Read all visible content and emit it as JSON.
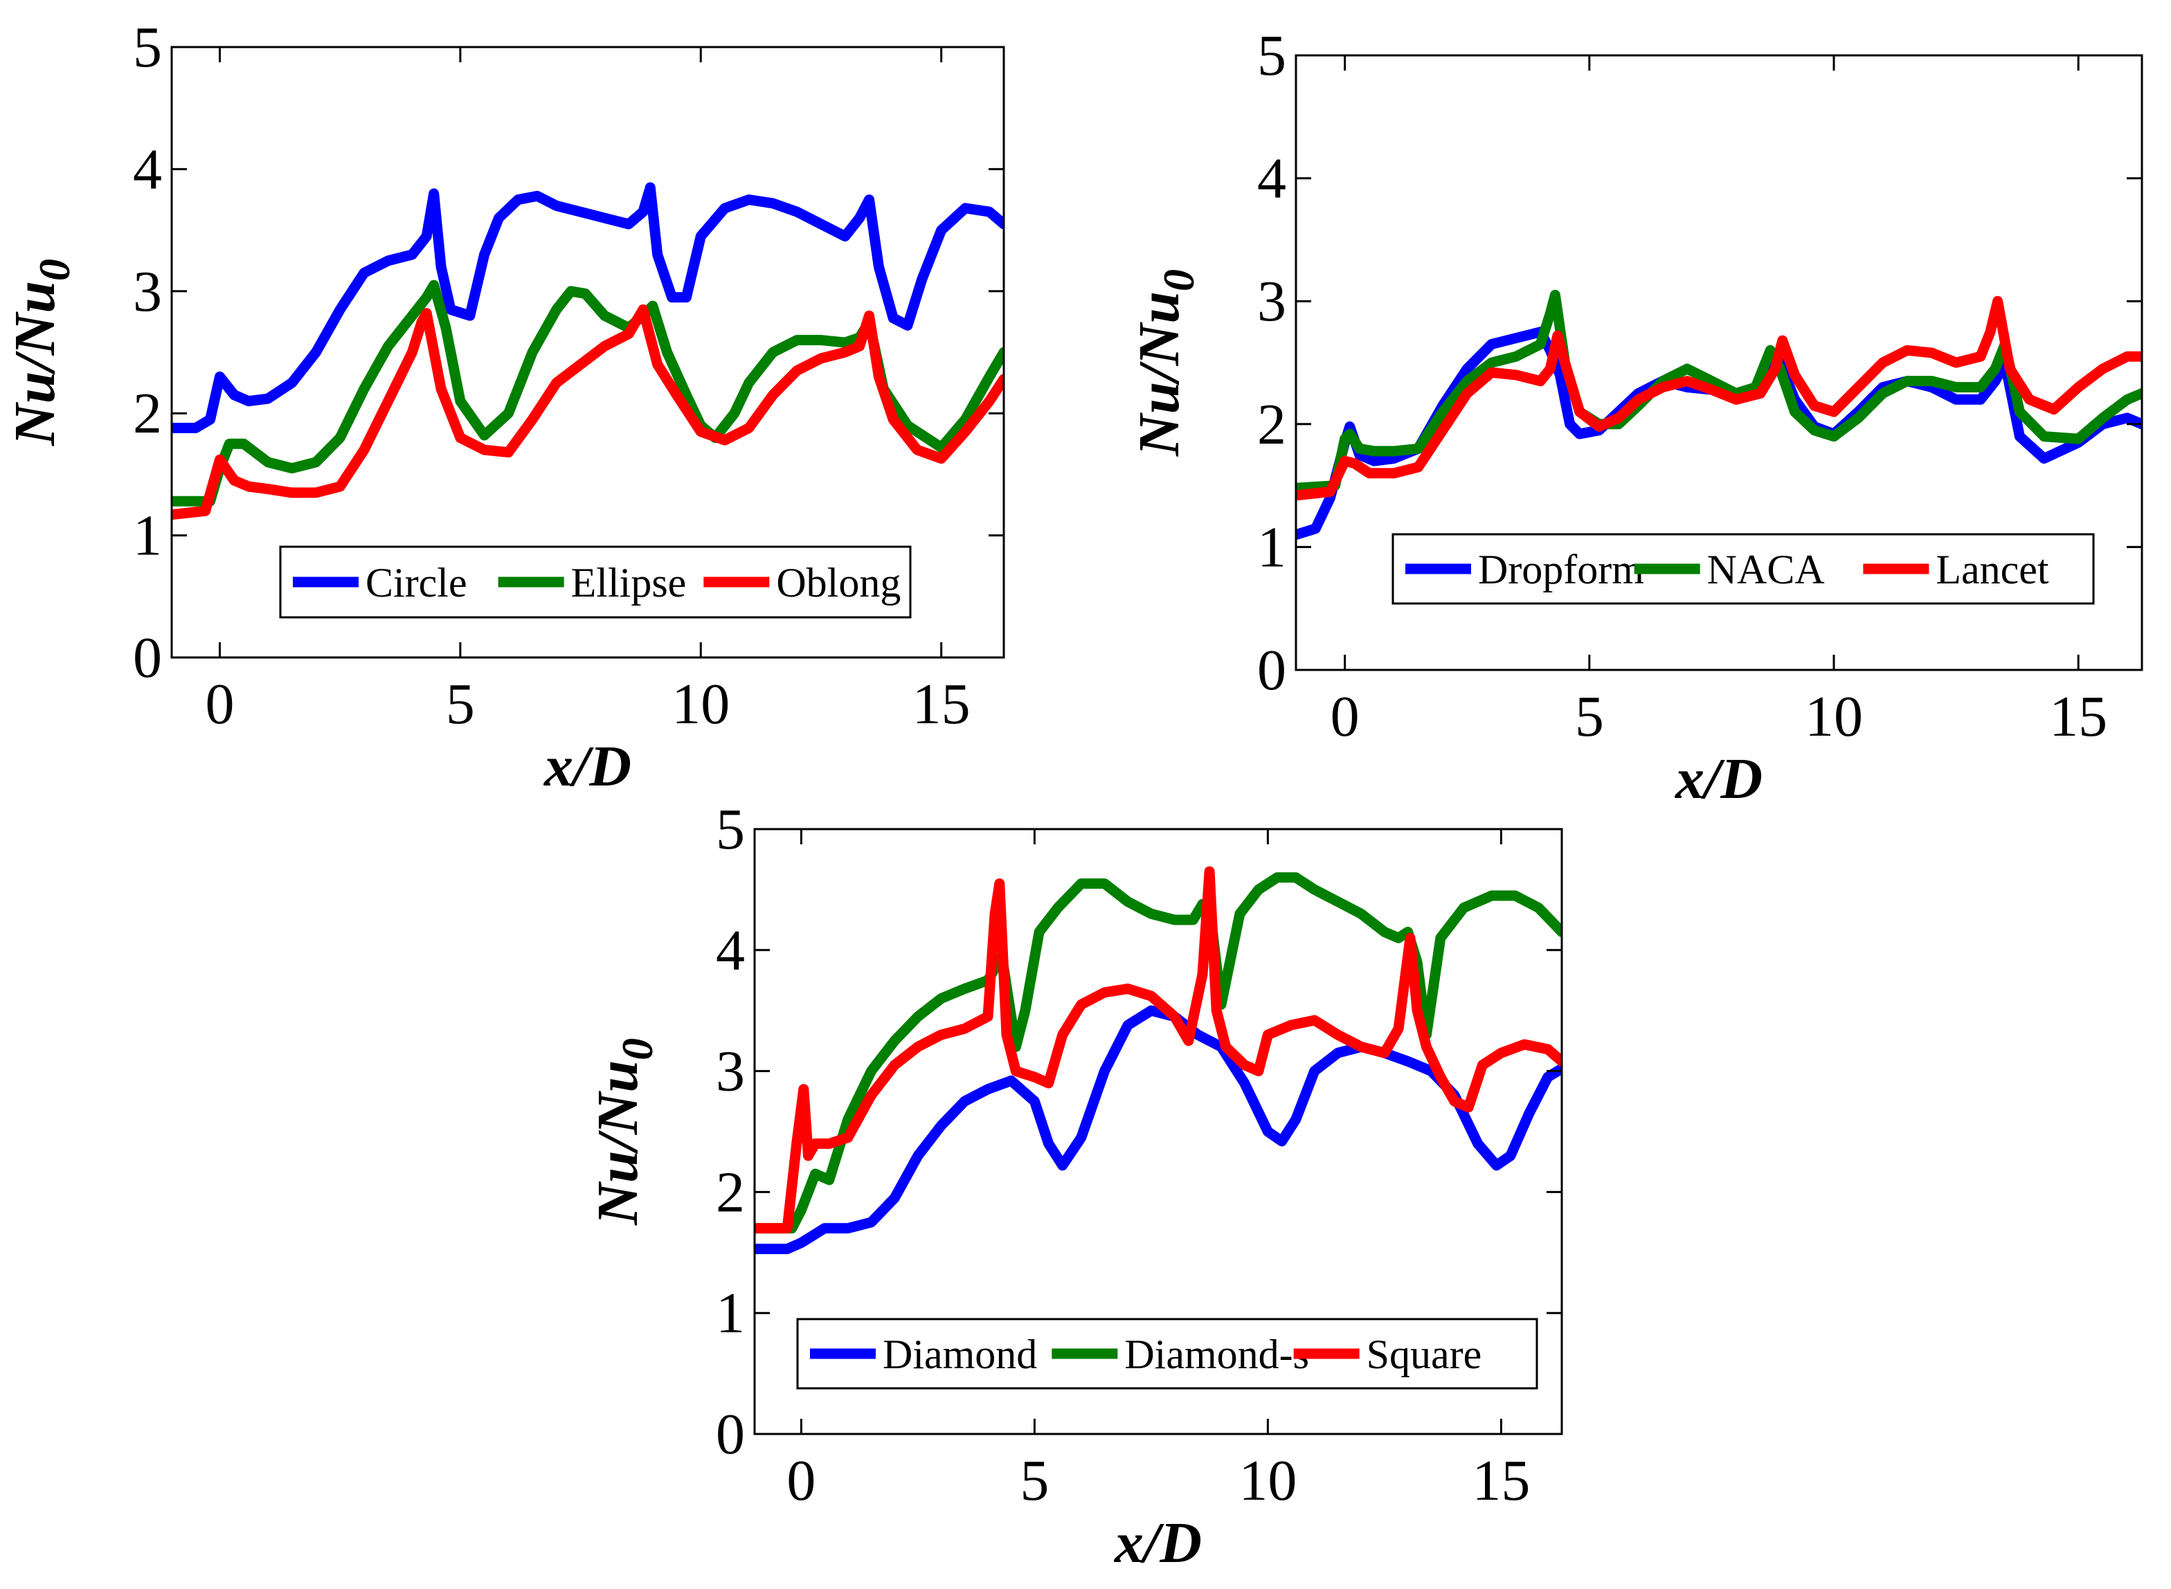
{
  "chart_data": [
    {
      "type": "line",
      "xlabel": "x/D",
      "ylabel": "Nu/Nu",
      "ylabel_subscript": "0",
      "xlim": [
        -1,
        16.3
      ],
      "ylim": [
        0,
        5
      ],
      "xticks": [
        "0",
        "5",
        "10",
        "15"
      ],
      "yticks": [
        "0",
        "1",
        "2",
        "3",
        "4",
        "5"
      ],
      "legend_location": "lower-center",
      "series": [
        {
          "name": "Circle",
          "color": "#0000ff",
          "x": [
            -1,
            -0.5,
            -0.2,
            0,
            0.3,
            0.6,
            1,
            1.5,
            2,
            2.5,
            3,
            3.5,
            4,
            4.3,
            4.45,
            4.6,
            4.8,
            5.2,
            5.5,
            5.8,
            6.2,
            6.6,
            7,
            7.5,
            8,
            8.5,
            8.8,
            8.95,
            9.1,
            9.4,
            9.7,
            10,
            10.5,
            11,
            11.5,
            12,
            12.5,
            13,
            13.3,
            13.5,
            13.7,
            14,
            14.3,
            14.6,
            15,
            15.5,
            16,
            16.3
          ],
          "y": [
            1.88,
            1.88,
            1.95,
            2.3,
            2.15,
            2.1,
            2.12,
            2.25,
            2.5,
            2.85,
            3.15,
            3.25,
            3.3,
            3.45,
            3.8,
            3.2,
            2.85,
            2.8,
            3.3,
            3.6,
            3.75,
            3.78,
            3.7,
            3.65,
            3.6,
            3.55,
            3.65,
            3.85,
            3.3,
            2.95,
            2.95,
            3.45,
            3.68,
            3.75,
            3.72,
            3.65,
            3.55,
            3.45,
            3.6,
            3.75,
            3.2,
            2.78,
            2.72,
            3.1,
            3.5,
            3.68,
            3.65,
            3.55
          ]
        },
        {
          "name": "Ellipse",
          "color": "#007f00",
          "x": [
            -1,
            -0.2,
            0,
            0.2,
            0.5,
            1,
            1.5,
            2,
            2.5,
            3,
            3.5,
            4,
            4.3,
            4.45,
            4.7,
            5,
            5.5,
            6,
            6.5,
            7,
            7.3,
            7.6,
            8,
            8.5,
            8.8,
            9,
            9.3,
            9.7,
            10,
            10.3,
            10.7,
            11,
            11.5,
            12,
            12.5,
            13,
            13.3,
            13.5,
            13.8,
            14.3,
            15,
            15.5,
            16,
            16.3
          ],
          "y": [
            1.28,
            1.28,
            1.55,
            1.75,
            1.75,
            1.6,
            1.55,
            1.6,
            1.8,
            2.2,
            2.55,
            2.8,
            2.95,
            3.05,
            2.7,
            2.1,
            1.82,
            2.0,
            2.5,
            2.85,
            3.0,
            2.98,
            2.8,
            2.7,
            2.8,
            2.88,
            2.5,
            2.15,
            1.9,
            1.8,
            2.0,
            2.25,
            2.5,
            2.6,
            2.6,
            2.58,
            2.62,
            2.75,
            2.2,
            1.9,
            1.72,
            1.95,
            2.3,
            2.5
          ]
        },
        {
          "name": "Oblong",
          "color": "#ff0000",
          "x": [
            -1,
            -0.3,
            0,
            0.3,
            0.6,
            1,
            1.5,
            2,
            2.5,
            3,
            3.5,
            4,
            4.2,
            4.3,
            4.6,
            5,
            5.5,
            6,
            6.5,
            7,
            7.5,
            8,
            8.5,
            8.8,
            8.9,
            9.1,
            9.5,
            10,
            10.5,
            11,
            11.5,
            12,
            12.5,
            13,
            13.3,
            13.5,
            13.7,
            14,
            14.5,
            15,
            15.5,
            16,
            16.3
          ],
          "y": [
            1.17,
            1.2,
            1.62,
            1.45,
            1.4,
            1.38,
            1.35,
            1.35,
            1.4,
            1.7,
            2.1,
            2.5,
            2.75,
            2.82,
            2.2,
            1.8,
            1.7,
            1.68,
            1.95,
            2.25,
            2.4,
            2.55,
            2.65,
            2.85,
            2.7,
            2.4,
            2.15,
            1.85,
            1.78,
            1.88,
            2.15,
            2.35,
            2.45,
            2.5,
            2.55,
            2.8,
            2.3,
            1.95,
            1.7,
            1.63,
            1.85,
            2.1,
            2.28
          ]
        }
      ],
      "legend": [
        "Circle",
        "Ellipse",
        "Oblong"
      ]
    },
    {
      "type": "line",
      "xlabel": "x/D",
      "ylabel": "Nu/Nu",
      "ylabel_subscript": "0",
      "xlim": [
        -1,
        16.3
      ],
      "ylim": [
        0,
        5
      ],
      "xticks": [
        "0",
        "5",
        "10",
        "15"
      ],
      "yticks": [
        "0",
        "1",
        "2",
        "3",
        "4",
        "5"
      ],
      "legend_location": "lower-center",
      "series": [
        {
          "name": "Dropform",
          "color": "#0000ff",
          "x": [
            -1,
            -0.6,
            -0.3,
            0,
            0.1,
            0.3,
            0.6,
            1,
            1.5,
            2,
            2.5,
            3,
            3.5,
            4,
            4.2,
            4.4,
            4.6,
            4.8,
            5.2,
            5.6,
            6,
            6.5,
            7,
            7.5,
            8,
            8.5,
            8.7,
            8.9,
            9.2,
            9.6,
            10,
            10.5,
            11,
            11.5,
            12,
            12.5,
            13,
            13.3,
            13.5,
            13.8,
            14.3,
            15,
            15.5,
            16,
            16.3
          ],
          "y": [
            1.1,
            1.15,
            1.4,
            1.85,
            1.98,
            1.75,
            1.7,
            1.72,
            1.8,
            2.15,
            2.45,
            2.65,
            2.7,
            2.75,
            2.6,
            2.4,
            2.0,
            1.92,
            1.95,
            2.1,
            2.25,
            2.35,
            2.3,
            2.28,
            2.22,
            2.3,
            2.55,
            2.5,
            2.2,
            1.98,
            1.92,
            2.1,
            2.3,
            2.35,
            2.3,
            2.2,
            2.2,
            2.35,
            2.5,
            1.9,
            1.72,
            1.85,
            2.0,
            2.05,
            2.0
          ]
        },
        {
          "name": "NACA",
          "color": "#007f00",
          "x": [
            -1,
            -0.2,
            0,
            0.1,
            0.3,
            0.6,
            1,
            1.5,
            2,
            2.5,
            3,
            3.5,
            4,
            4.2,
            4.3,
            4.5,
            4.8,
            5.2,
            5.6,
            6,
            6.5,
            7,
            7.5,
            8,
            8.4,
            8.7,
            8.9,
            9.2,
            9.6,
            10,
            10.5,
            11,
            11.5,
            12,
            12.5,
            13,
            13.3,
            13.5,
            13.8,
            14.3,
            15,
            15.5,
            16,
            16.3
          ],
          "y": [
            1.48,
            1.5,
            1.88,
            1.92,
            1.8,
            1.78,
            1.78,
            1.8,
            2.1,
            2.35,
            2.5,
            2.55,
            2.65,
            2.9,
            3.05,
            2.5,
            2.1,
            2.0,
            2.0,
            2.15,
            2.35,
            2.45,
            2.35,
            2.25,
            2.3,
            2.6,
            2.45,
            2.1,
            1.95,
            1.9,
            2.05,
            2.25,
            2.35,
            2.35,
            2.3,
            2.3,
            2.45,
            2.65,
            2.1,
            1.9,
            1.88,
            2.05,
            2.2,
            2.25
          ]
        },
        {
          "name": "Lancet",
          "color": "#ff0000",
          "x": [
            -1,
            -0.3,
            0,
            0.2,
            0.5,
            1,
            1.5,
            2,
            2.5,
            3,
            3.5,
            4,
            4.2,
            4.35,
            4.5,
            4.8,
            5.2,
            5.6,
            6,
            6.5,
            7,
            7.5,
            8,
            8.5,
            8.8,
            8.95,
            9.2,
            9.6,
            10,
            10.5,
            11,
            11.5,
            12,
            12.5,
            13,
            13.2,
            13.35,
            13.6,
            14,
            14.5,
            15,
            15.5,
            16,
            16.3
          ],
          "y": [
            1.42,
            1.45,
            1.7,
            1.68,
            1.6,
            1.6,
            1.65,
            1.95,
            2.25,
            2.42,
            2.4,
            2.35,
            2.45,
            2.72,
            2.5,
            2.1,
            1.98,
            2.05,
            2.2,
            2.3,
            2.35,
            2.28,
            2.2,
            2.25,
            2.45,
            2.68,
            2.4,
            2.15,
            2.1,
            2.3,
            2.5,
            2.6,
            2.58,
            2.5,
            2.55,
            2.75,
            3.0,
            2.45,
            2.2,
            2.12,
            2.3,
            2.45,
            2.55,
            2.55
          ]
        }
      ],
      "legend": [
        "Dropform",
        "NACA",
        "Lancet"
      ]
    },
    {
      "type": "line",
      "xlabel": "x/D",
      "ylabel": "Nu/Nu",
      "ylabel_subscript": "0",
      "xlim": [
        -1,
        16.3
      ],
      "ylim": [
        0,
        5
      ],
      "xticks": [
        "0",
        "5",
        "10",
        "15"
      ],
      "yticks": [
        "0",
        "1",
        "2",
        "3",
        "4",
        "5"
      ],
      "legend_location": "lower-center",
      "series": [
        {
          "name": "Diamond",
          "color": "#0000ff",
          "x": [
            -1,
            -0.3,
            0,
            0.5,
            1,
            1.5,
            2,
            2.5,
            3,
            3.5,
            4,
            4.5,
            5,
            5.3,
            5.6,
            6,
            6.5,
            7,
            7.5,
            8,
            8.5,
            9,
            9.5,
            10,
            10.3,
            10.6,
            11,
            11.5,
            12,
            12.5,
            13,
            13.5,
            14,
            14.5,
            14.9,
            15.2,
            15.6,
            16,
            16.3
          ],
          "y": [
            1.53,
            1.53,
            1.58,
            1.7,
            1.7,
            1.75,
            1.95,
            2.3,
            2.55,
            2.75,
            2.85,
            2.92,
            2.75,
            2.4,
            2.22,
            2.45,
            3.0,
            3.38,
            3.5,
            3.45,
            3.3,
            3.2,
            2.9,
            2.5,
            2.42,
            2.6,
            3.0,
            3.15,
            3.2,
            3.15,
            3.08,
            3.0,
            2.8,
            2.4,
            2.22,
            2.3,
            2.65,
            2.95,
            3.02
          ]
        },
        {
          "name": "Diamond-s",
          "color": "#007f00",
          "x": [
            -1,
            -0.2,
            0,
            0.3,
            0.6,
            1,
            1.5,
            2,
            2.5,
            3,
            3.5,
            4,
            4.3,
            4.6,
            4.8,
            5.1,
            5.5,
            6,
            6.5,
            7,
            7.5,
            8,
            8.4,
            8.6,
            8.8,
            9,
            9.4,
            9.8,
            10.2,
            10.6,
            11,
            11.5,
            12,
            12.5,
            12.8,
            13,
            13.2,
            13.4,
            13.7,
            14.2,
            14.8,
            15.3,
            15.8,
            16.3
          ],
          "y": [
            1.7,
            1.7,
            1.85,
            2.15,
            2.1,
            2.6,
            3.0,
            3.25,
            3.45,
            3.6,
            3.68,
            3.75,
            3.95,
            3.2,
            3.5,
            4.15,
            4.35,
            4.55,
            4.55,
            4.4,
            4.3,
            4.25,
            4.25,
            4.38,
            4.2,
            3.55,
            4.3,
            4.5,
            4.6,
            4.6,
            4.5,
            4.4,
            4.3,
            4.15,
            4.1,
            4.15,
            3.9,
            3.3,
            4.1,
            4.35,
            4.45,
            4.45,
            4.35,
            4.15
          ]
        },
        {
          "name": "Square",
          "color": "#ff0000",
          "x": [
            -1,
            -0.3,
            -0.1,
            0.05,
            0.15,
            0.3,
            0.6,
            1,
            1.5,
            2,
            2.5,
            3,
            3.5,
            4,
            4.15,
            4.25,
            4.4,
            4.6,
            5,
            5.3,
            5.6,
            6,
            6.5,
            7,
            7.5,
            8,
            8.3,
            8.6,
            8.75,
            8.9,
            9.1,
            9.5,
            9.8,
            10,
            10.5,
            11,
            11.5,
            12,
            12.5,
            12.8,
            13.05,
            13.2,
            13.4,
            13.7,
            14,
            14.3,
            14.6,
            15,
            15.5,
            16,
            16.3
          ],
          "y": [
            1.7,
            1.7,
            2.4,
            2.85,
            2.3,
            2.4,
            2.4,
            2.45,
            2.8,
            3.05,
            3.2,
            3.3,
            3.35,
            3.45,
            4.3,
            4.55,
            3.3,
            3.0,
            2.95,
            2.9,
            3.3,
            3.55,
            3.65,
            3.68,
            3.62,
            3.45,
            3.25,
            3.8,
            4.65,
            3.5,
            3.2,
            3.05,
            3.0,
            3.3,
            3.38,
            3.42,
            3.3,
            3.2,
            3.15,
            3.35,
            4.1,
            3.5,
            3.2,
            2.95,
            2.75,
            2.7,
            3.05,
            3.15,
            3.22,
            3.18,
            3.08
          ]
        }
      ],
      "legend": [
        "Diamond",
        "Diamond-s",
        "Square"
      ]
    }
  ]
}
